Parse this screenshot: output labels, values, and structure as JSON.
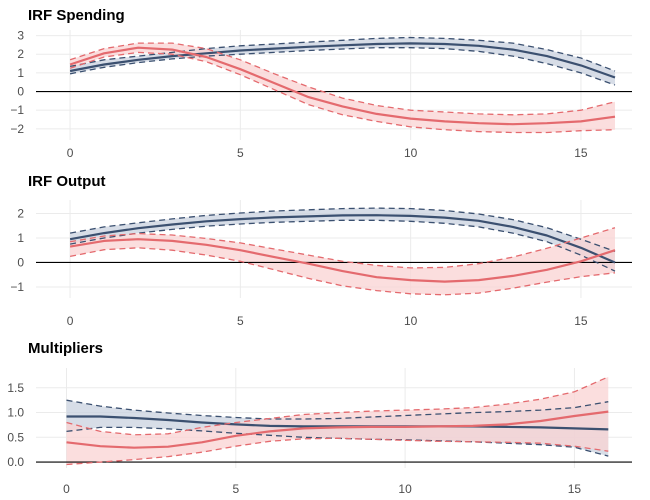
{
  "chart_data": [
    {
      "type": "line",
      "title": "IRF Spending",
      "xlim": [
        -1,
        16.5
      ],
      "ylim": [
        -2.6,
        3.3
      ],
      "x_ticks": [
        0,
        5,
        10,
        15
      ],
      "y_ticks": [
        -2,
        -1,
        0,
        1,
        2,
        3
      ],
      "y_tick_labels": [
        "−2",
        "−1",
        "0",
        "1",
        "2",
        "3"
      ],
      "reference_line": 0,
      "x": [
        0,
        1,
        2,
        3,
        4,
        5,
        6,
        7,
        8,
        9,
        10,
        11,
        12,
        13,
        14,
        15,
        16
      ],
      "series": [
        {
          "color": "#3b5070",
          "fill": "#c9d1df",
          "values": [
            1.1,
            1.45,
            1.7,
            1.9,
            2.05,
            2.2,
            2.3,
            2.4,
            2.48,
            2.55,
            2.58,
            2.55,
            2.45,
            2.25,
            1.9,
            1.4,
            0.75
          ],
          "lower": [
            0.95,
            1.3,
            1.55,
            1.75,
            1.9,
            2.0,
            2.1,
            2.2,
            2.28,
            2.35,
            2.35,
            2.3,
            2.15,
            1.9,
            1.5,
            1.0,
            0.35
          ],
          "upper": [
            1.35,
            1.7,
            1.9,
            2.1,
            2.3,
            2.45,
            2.55,
            2.65,
            2.75,
            2.85,
            2.9,
            2.85,
            2.75,
            2.6,
            2.25,
            1.8,
            1.1
          ]
        },
        {
          "color": "#e46a6e",
          "fill": "#f9d3d3",
          "values": [
            1.45,
            2.05,
            2.35,
            2.25,
            1.85,
            1.2,
            0.45,
            -0.3,
            -0.8,
            -1.2,
            -1.45,
            -1.6,
            -1.7,
            -1.75,
            -1.7,
            -1.6,
            -1.35
          ],
          "lower": [
            1.25,
            1.85,
            2.1,
            2.0,
            1.6,
            0.9,
            0.1,
            -0.7,
            -1.25,
            -1.6,
            -1.9,
            -2.05,
            -2.15,
            -2.2,
            -2.2,
            -2.1,
            -2.05
          ],
          "upper": [
            1.7,
            2.3,
            2.6,
            2.6,
            2.3,
            1.7,
            0.95,
            0.25,
            -0.35,
            -0.75,
            -1.0,
            -1.1,
            -1.2,
            -1.25,
            -1.2,
            -1.0,
            -0.55
          ]
        }
      ]
    },
    {
      "type": "line",
      "title": "IRF Output",
      "xlim": [
        -1,
        16.5
      ],
      "ylim": [
        -1.45,
        2.55
      ],
      "x_ticks": [
        0,
        5,
        10,
        15
      ],
      "y_ticks": [
        -1,
        0,
        1,
        2
      ],
      "y_tick_labels": [
        "−1",
        "0",
        "1",
        "2"
      ],
      "reference_line": 0,
      "x": [
        0,
        1,
        2,
        3,
        4,
        5,
        6,
        7,
        8,
        9,
        10,
        11,
        12,
        13,
        14,
        15,
        16
      ],
      "series": [
        {
          "color": "#3b5070",
          "fill": "#c9d1df",
          "values": [
            0.95,
            1.2,
            1.4,
            1.55,
            1.68,
            1.77,
            1.84,
            1.88,
            1.92,
            1.93,
            1.9,
            1.83,
            1.7,
            1.45,
            1.1,
            0.6,
            0.0
          ],
          "lower": [
            0.75,
            1.0,
            1.2,
            1.35,
            1.48,
            1.57,
            1.64,
            1.68,
            1.72,
            1.72,
            1.68,
            1.6,
            1.45,
            1.2,
            0.85,
            0.3,
            -0.35
          ],
          "upper": [
            1.2,
            1.45,
            1.62,
            1.78,
            1.92,
            2.02,
            2.1,
            2.15,
            2.2,
            2.22,
            2.2,
            2.12,
            1.98,
            1.75,
            1.42,
            0.95,
            0.45
          ]
        },
        {
          "color": "#e46a6e",
          "fill": "#f9d3d3",
          "values": [
            0.65,
            0.88,
            0.95,
            0.88,
            0.72,
            0.5,
            0.22,
            -0.05,
            -0.35,
            -0.6,
            -0.72,
            -0.78,
            -0.72,
            -0.55,
            -0.3,
            0.05,
            0.5
          ],
          "lower": [
            0.25,
            0.52,
            0.6,
            0.5,
            0.3,
            0.05,
            -0.3,
            -0.65,
            -0.95,
            -1.15,
            -1.28,
            -1.32,
            -1.25,
            -1.05,
            -0.8,
            -0.58,
            -0.42
          ],
          "upper": [
            0.85,
            1.08,
            1.18,
            1.12,
            0.98,
            0.8,
            0.55,
            0.3,
            0.05,
            -0.12,
            -0.22,
            -0.2,
            -0.05,
            0.22,
            0.58,
            1.0,
            1.42
          ]
        }
      ]
    },
    {
      "type": "line",
      "title": "Multipliers",
      "xlim": [
        -0.9,
        16.7
      ],
      "ylim": [
        -0.12,
        1.9
      ],
      "x_ticks": [
        0,
        5,
        10,
        15
      ],
      "y_ticks": [
        0.0,
        0.5,
        1.0,
        1.5
      ],
      "y_tick_labels": [
        "0.0",
        "0.5",
        "1.0",
        "1.5"
      ],
      "reference_line": 0,
      "x": [
        0,
        1,
        2,
        3,
        4,
        5,
        6,
        7,
        8,
        9,
        10,
        11,
        12,
        13,
        14,
        15,
        16
      ],
      "series": [
        {
          "color": "#3b5070",
          "fill": "#c9d1df",
          "values": [
            0.92,
            0.92,
            0.89,
            0.85,
            0.8,
            0.76,
            0.73,
            0.72,
            0.72,
            0.72,
            0.72,
            0.72,
            0.72,
            0.71,
            0.7,
            0.68,
            0.66
          ],
          "lower": [
            0.62,
            0.7,
            0.7,
            0.67,
            0.63,
            0.58,
            0.54,
            0.5,
            0.48,
            0.46,
            0.45,
            0.43,
            0.41,
            0.38,
            0.35,
            0.3,
            0.12
          ],
          "upper": [
            1.25,
            1.13,
            1.05,
            0.99,
            0.94,
            0.9,
            0.87,
            0.87,
            0.88,
            0.91,
            0.94,
            0.97,
            1.0,
            1.02,
            1.05,
            1.1,
            1.22
          ]
        },
        {
          "color": "#e46a6e",
          "fill": "#f9d3d3",
          "values": [
            0.4,
            0.32,
            0.29,
            0.31,
            0.4,
            0.53,
            0.62,
            0.68,
            0.7,
            0.71,
            0.71,
            0.72,
            0.73,
            0.76,
            0.83,
            0.93,
            1.02
          ],
          "lower": [
            -0.05,
            0.0,
            0.05,
            0.11,
            0.2,
            0.32,
            0.42,
            0.47,
            0.48,
            0.46,
            0.44,
            0.42,
            0.41,
            0.4,
            0.38,
            0.32,
            0.22
          ],
          "upper": [
            0.8,
            0.62,
            0.55,
            0.57,
            0.7,
            0.8,
            0.88,
            0.96,
            1.0,
            1.03,
            1.05,
            1.07,
            1.1,
            1.17,
            1.27,
            1.42,
            1.72
          ]
        }
      ]
    }
  ]
}
